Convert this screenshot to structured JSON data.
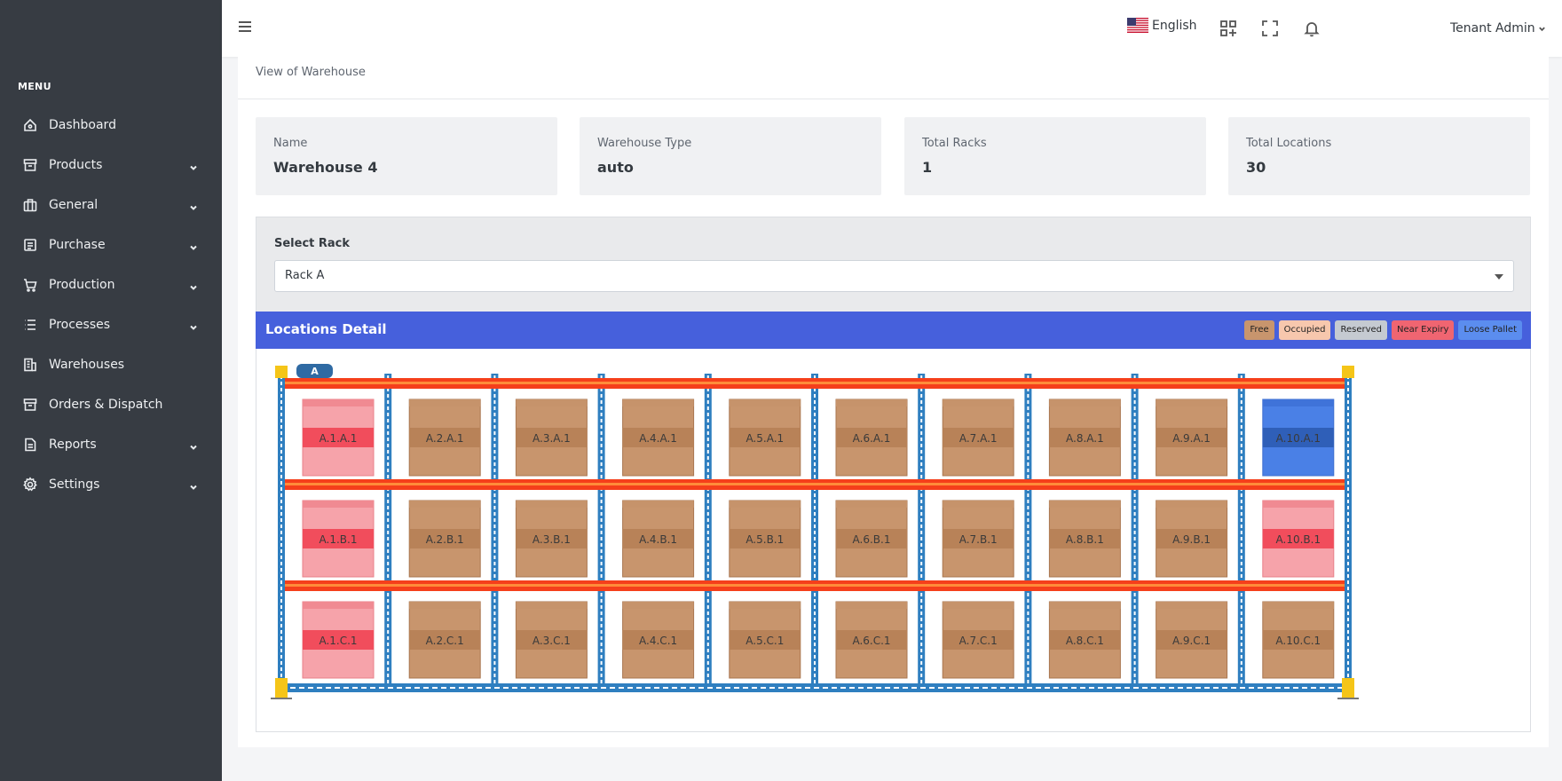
{
  "sidebar": {
    "menu_title": "MENU",
    "items": [
      {
        "label": "Dashboard",
        "icon": "home-icon",
        "has_children": false
      },
      {
        "label": "Products",
        "icon": "box-icon",
        "has_children": true
      },
      {
        "label": "General",
        "icon": "briefcase-icon",
        "has_children": true
      },
      {
        "label": "Purchase",
        "icon": "document-icon",
        "has_children": true
      },
      {
        "label": "Production",
        "icon": "cart-icon",
        "has_children": true
      },
      {
        "label": "Processes",
        "icon": "list-icon",
        "has_children": true
      },
      {
        "label": "Warehouses",
        "icon": "building-icon",
        "has_children": false
      },
      {
        "label": "Orders & Dispatch",
        "icon": "archive-icon",
        "has_children": false
      },
      {
        "label": "Reports",
        "icon": "report-icon",
        "has_children": true
      },
      {
        "label": "Settings",
        "icon": "gear-icon",
        "has_children": true
      }
    ]
  },
  "topbar": {
    "language": "English",
    "user": "Tenant Admin"
  },
  "page": {
    "title": "View of Warehouse"
  },
  "stats": [
    {
      "label": "Name",
      "value": "Warehouse 4"
    },
    {
      "label": "Warehouse Type",
      "value": "auto"
    },
    {
      "label": "Total Racks",
      "value": "1"
    },
    {
      "label": "Total Locations",
      "value": "30"
    }
  ],
  "rack_select": {
    "label": "Select Rack",
    "value": "Rack A"
  },
  "locations": {
    "title": "Locations Detail",
    "legend": [
      {
        "label": "Free",
        "color": "#c8956d"
      },
      {
        "label": "Occupied",
        "color": "#f7c7ad"
      },
      {
        "label": "Reserved",
        "color": "#c5cad1"
      },
      {
        "label": "Near Expiry",
        "color": "#f06571"
      },
      {
        "label": "Loose Pallet",
        "color": "#5b8def"
      }
    ],
    "rack_label": "A",
    "rows": [
      {
        "cells": [
          {
            "label": "A.1.A.1",
            "status": "Near Expiry"
          },
          {
            "label": "A.2.A.1",
            "status": "Free"
          },
          {
            "label": "A.3.A.1",
            "status": "Free"
          },
          {
            "label": "A.4.A.1",
            "status": "Free"
          },
          {
            "label": "A.5.A.1",
            "status": "Free"
          },
          {
            "label": "A.6.A.1",
            "status": "Free"
          },
          {
            "label": "A.7.A.1",
            "status": "Free"
          },
          {
            "label": "A.8.A.1",
            "status": "Free"
          },
          {
            "label": "A.9.A.1",
            "status": "Free"
          },
          {
            "label": "A.10.A.1",
            "status": "Loose Pallet"
          }
        ]
      },
      {
        "cells": [
          {
            "label": "A.1.B.1",
            "status": "Near Expiry"
          },
          {
            "label": "A.2.B.1",
            "status": "Free"
          },
          {
            "label": "A.3.B.1",
            "status": "Free"
          },
          {
            "label": "A.4.B.1",
            "status": "Free"
          },
          {
            "label": "A.5.B.1",
            "status": "Free"
          },
          {
            "label": "A.6.B.1",
            "status": "Free"
          },
          {
            "label": "A.7.B.1",
            "status": "Free"
          },
          {
            "label": "A.8.B.1",
            "status": "Free"
          },
          {
            "label": "A.9.B.1",
            "status": "Free"
          },
          {
            "label": "A.10.B.1",
            "status": "Near Expiry"
          }
        ]
      },
      {
        "cells": [
          {
            "label": "A.1.C.1",
            "status": "Near Expiry"
          },
          {
            "label": "A.2.C.1",
            "status": "Free"
          },
          {
            "label": "A.3.C.1",
            "status": "Free"
          },
          {
            "label": "A.4.C.1",
            "status": "Free"
          },
          {
            "label": "A.5.C.1",
            "status": "Free"
          },
          {
            "label": "A.6.C.1",
            "status": "Free"
          },
          {
            "label": "A.7.C.1",
            "status": "Free"
          },
          {
            "label": "A.8.C.1",
            "status": "Free"
          },
          {
            "label": "A.9.C.1",
            "status": "Free"
          },
          {
            "label": "A.10.C.1",
            "status": "Free"
          }
        ]
      }
    ]
  },
  "colors": {
    "sidebar_bg": "#373c43",
    "header_blue": "#4660dc",
    "beam_red": "#f53f1b",
    "upright_blue": "#2f7fc0",
    "footplate_yellow": "#f5c518"
  }
}
